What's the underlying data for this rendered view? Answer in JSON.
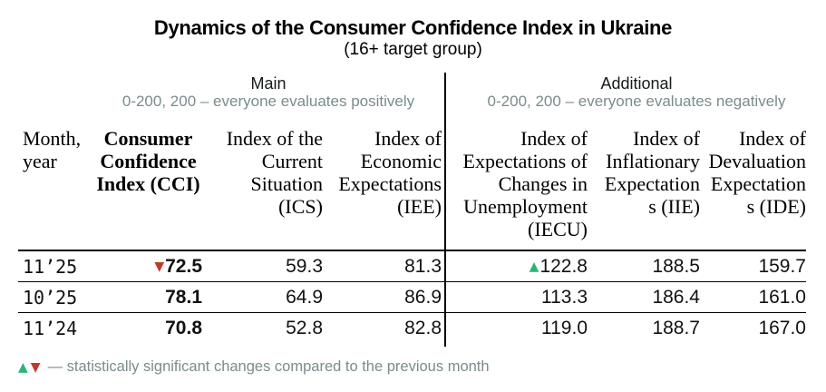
{
  "title": "Dynamics of the Consumer Confidence Index in Ukraine",
  "subtitle": "(16+ target group)",
  "sections": {
    "main": {
      "label": "Main",
      "scale_note": "0-200, 200 – everyone evaluates positively"
    },
    "additional": {
      "label": "Additional",
      "scale_note": "0-200, 200 – everyone evaluates negatively"
    }
  },
  "table": {
    "headers": {
      "month": "Month,\nyear",
      "cci": "Consumer\nConfidence\nIndex (CCI)",
      "ics": "Index of the\nCurrent\nSituation\n(ICS)",
      "iee": "Index of\nEconomic\nExpectations\n(IEE)",
      "iecu": "Index of\nExpectations of\nChanges in\nUnemployment\n(IECU)",
      "iie": "Index of\nInflationary\nExpectation\ns (IIE)",
      "ide": "Index of\nDevaluation\nExpectation\ns (IDE)"
    },
    "rows": [
      {
        "month": "11’25",
        "cci": "72.5",
        "cci_change": "down",
        "ics": "59.3",
        "iee": "81.3",
        "iecu": "122.8",
        "iecu_change": "up",
        "iie": "188.5",
        "ide": "159.7"
      },
      {
        "month": "10’25",
        "cci": "78.1",
        "cci_change": "",
        "ics": "64.9",
        "iee": "86.9",
        "iecu": "113.3",
        "iecu_change": "",
        "iie": "186.4",
        "ide": "161.0"
      },
      {
        "month": "11’24",
        "cci": "70.8",
        "cci_change": "",
        "ics": "52.8",
        "iee": "82.8",
        "iecu": "119.0",
        "iecu_change": "",
        "iie": "188.7",
        "ide": "167.0"
      }
    ]
  },
  "legend": {
    "up_icon": "▲",
    "down_icon": "▼",
    "text": "— statistically significant changes compared to the previous month"
  },
  "colors": {
    "up": "#2bb573",
    "down": "#c0392b",
    "muted": "#7c8b8d",
    "line": "#000000"
  },
  "chart_data": {
    "type": "table",
    "title": "Dynamics of the Consumer Confidence Index in Ukraine",
    "subtitle": "(16+ target group)",
    "column_groups": [
      {
        "label": "Main",
        "scale": "0-200, 200 – everyone evaluates positively",
        "columns": [
          "CCI",
          "ICS",
          "IEE"
        ]
      },
      {
        "label": "Additional",
        "scale": "0-200, 200 – everyone evaluates negatively",
        "columns": [
          "IECU",
          "IIE",
          "IDE"
        ]
      }
    ],
    "columns": [
      "Month, year",
      "Consumer Confidence Index (CCI)",
      "Index of the Current Situation (ICS)",
      "Index of Economic Expectations (IEE)",
      "Index of Expectations of Changes in Unemployment (IECU)",
      "Index of Inflationary Expectations (IIE)",
      "Index of Devaluation Expectations (IDE)"
    ],
    "rows": [
      [
        "11’25",
        72.5,
        59.3,
        81.3,
        122.8,
        188.5,
        159.7
      ],
      [
        "10’25",
        78.1,
        64.9,
        86.9,
        113.3,
        186.4,
        161.0
      ],
      [
        "11’24",
        70.8,
        52.8,
        82.8,
        119.0,
        188.7,
        167.0
      ]
    ],
    "annotations": [
      "CCI 11’25 marked with red down-triangle: statistically significant decrease vs previous month",
      "IECU 11’25 marked with green up-triangle: statistically significant increase vs previous month"
    ]
  }
}
